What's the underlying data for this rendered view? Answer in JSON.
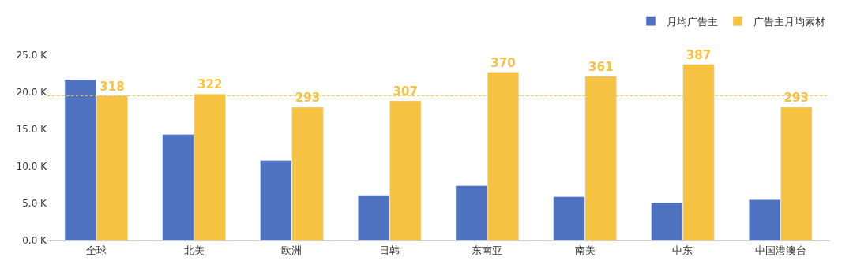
{
  "chart_data": {
    "type": "bar",
    "categories": [
      "全球",
      "北美",
      "欧洲",
      "日韩",
      "东南亚",
      "南美",
      "中东",
      "中国港澳台"
    ],
    "series": [
      {
        "name": "月均广告主",
        "color": "#4f72c0",
        "values": [
          21700,
          14300,
          10800,
          6100,
          7400,
          5900,
          5100,
          5500
        ]
      },
      {
        "name": "广告主月均素材",
        "color": "#f5c242",
        "axis": "y2",
        "values": [
          318,
          322,
          293,
          307,
          370,
          361,
          387,
          293
        ],
        "value_labels": [
          "318",
          "322",
          "293",
          "307",
          "370",
          "361",
          "387",
          "293"
        ]
      }
    ],
    "ylim": [
      0,
      25000
    ],
    "yticks": [
      {
        "value": 0,
        "label": "0.0 K"
      },
      {
        "value": 5000,
        "label": "5.0 K"
      },
      {
        "value": 10000,
        "label": "10.0 K"
      },
      {
        "value": 15000,
        "label": "15.0 K"
      },
      {
        "value": 20000,
        "label": "20.0 K"
      },
      {
        "value": 25000,
        "label": "25.0 K"
      }
    ],
    "ref_lines": [
      {
        "axis": "y2",
        "value": 318,
        "color": "#f5c242",
        "line_style": "dotted"
      }
    ],
    "legend": "top right",
    "grid": false
  }
}
